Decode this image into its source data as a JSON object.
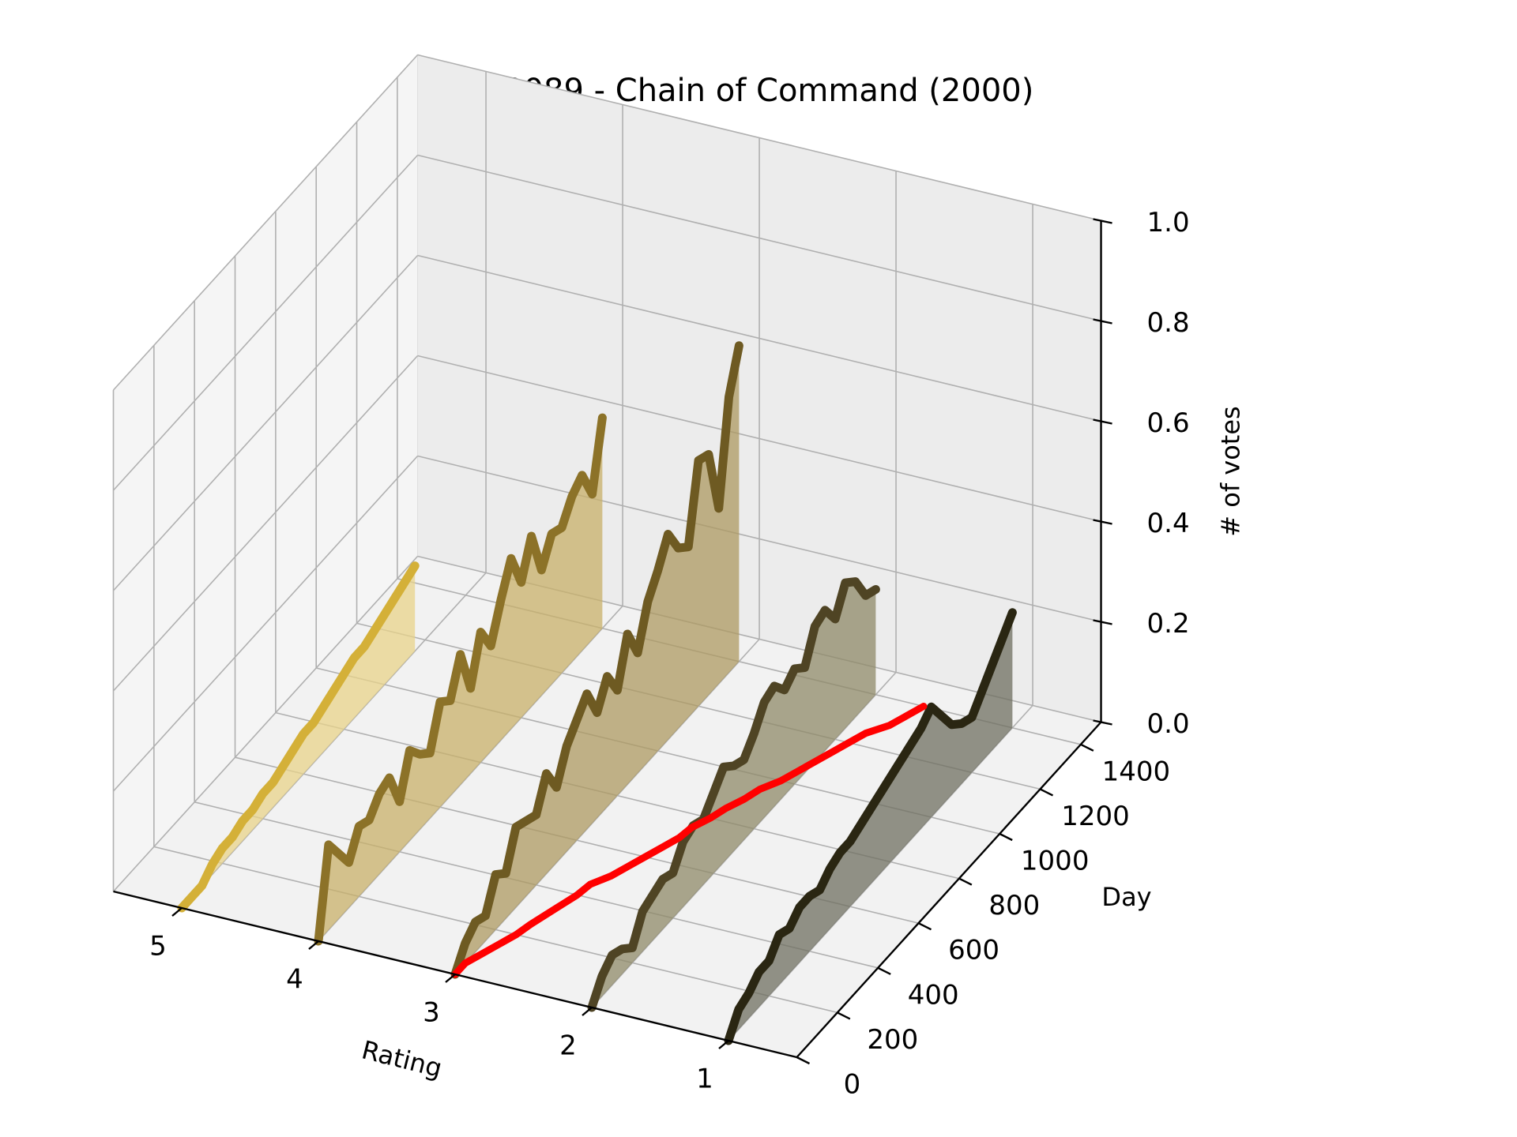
{
  "chart_data": {
    "type": "line",
    "projection": "3d",
    "title": "00089 - Chain of Command (2000)",
    "xlabel": "Rating",
    "ylabel": "Day",
    "zlabel": "# of votes",
    "xlim": [
      0.5,
      5.5
    ],
    "ylim": [
      0,
      1500
    ],
    "zlim": [
      0,
      1.0
    ],
    "x_ticks": [
      "1",
      "2",
      "3",
      "4",
      "5"
    ],
    "y_ticks": [
      "0",
      "200",
      "400",
      "600",
      "800",
      "1000",
      "1200",
      "1400"
    ],
    "z_ticks": [
      "0.0",
      "0.2",
      "0.4",
      "0.6",
      "0.8",
      "1.0"
    ],
    "grid": true,
    "pane_color": "#f2f2f2",
    "series": [
      {
        "rating": 5,
        "color": "#d4b038",
        "fill": "#e8d38a",
        "days": [
          0,
          50,
          100,
          150,
          200,
          250,
          300,
          350,
          400,
          450,
          500,
          550,
          600,
          650,
          700,
          750,
          800,
          850,
          900,
          950,
          1000,
          1050,
          1100,
          1150
        ],
        "values": [
          0.0,
          0.0,
          0.0,
          0.02,
          0.03,
          0.03,
          0.04,
          0.04,
          0.05,
          0.05,
          0.06,
          0.07,
          0.08,
          0.08,
          0.09,
          0.1,
          0.11,
          0.12,
          0.12,
          0.13,
          0.14,
          0.15,
          0.16,
          0.17
        ]
      },
      {
        "rating": 4,
        "color": "#8c7228",
        "fill": "#c8b06a",
        "days": [
          0,
          50,
          100,
          150,
          200,
          250,
          300,
          350,
          400,
          450,
          500,
          550,
          600,
          650,
          700,
          750,
          800,
          850,
          900,
          950,
          1000,
          1050,
          1100,
          1150,
          1200,
          1250,
          1300,
          1350,
          1400
        ],
        "values": [
          0.0,
          0.17,
          0.13,
          0.09,
          0.14,
          0.13,
          0.16,
          0.17,
          0.1,
          0.18,
          0.15,
          0.13,
          0.21,
          0.19,
          0.26,
          0.17,
          0.26,
          0.21,
          0.28,
          0.34,
          0.27,
          0.34,
          0.25,
          0.3,
          0.29,
          0.33,
          0.35,
          0.29,
          0.42
        ]
      },
      {
        "rating": 3,
        "color": "#6e5a22",
        "fill": "#ae9a62",
        "days": [
          0,
          50,
          100,
          150,
          200,
          250,
          300,
          350,
          400,
          450,
          500,
          550,
          600,
          650,
          700,
          750,
          800,
          850,
          900,
          950,
          1000,
          1050,
          1100,
          1150,
          1200,
          1250,
          1300,
          1350,
          1400
        ],
        "values": [
          0.0,
          0.04,
          0.06,
          0.05,
          0.11,
          0.09,
          0.16,
          0.15,
          0.14,
          0.2,
          0.15,
          0.21,
          0.24,
          0.27,
          0.21,
          0.26,
          0.21,
          0.3,
          0.24,
          0.32,
          0.36,
          0.41,
          0.36,
          0.34,
          0.49,
          0.48,
          0.35,
          0.55,
          0.63
        ]
      },
      {
        "rating": 2,
        "color": "#4f4424",
        "fill": "#8f8a68",
        "days": [
          0,
          50,
          100,
          150,
          200,
          250,
          300,
          350,
          400,
          450,
          500,
          550,
          600,
          650,
          700,
          750,
          800,
          850,
          900,
          950,
          1000,
          1050,
          1100,
          1150,
          1200,
          1250,
          1300,
          1350,
          1400
        ],
        "values": [
          0.0,
          0.04,
          0.06,
          0.05,
          0.03,
          0.08,
          0.09,
          0.1,
          0.09,
          0.13,
          0.14,
          0.13,
          0.16,
          0.19,
          0.17,
          0.16,
          0.19,
          0.23,
          0.24,
          0.21,
          0.23,
          0.21,
          0.27,
          0.28,
          0.24,
          0.29,
          0.27,
          0.22,
          0.21
        ]
      },
      {
        "rating": 1,
        "color": "#2a2612",
        "fill": "#6f6f60",
        "days": [
          0,
          50,
          100,
          150,
          200,
          250,
          300,
          350,
          400,
          450,
          500,
          550,
          600,
          650,
          700,
          750,
          800,
          850,
          900,
          950,
          1000,
          1050,
          1100,
          1150,
          1200,
          1250,
          1300,
          1350,
          1400
        ],
        "values": [
          0.0,
          0.04,
          0.05,
          0.07,
          0.07,
          0.1,
          0.09,
          0.11,
          0.11,
          0.1,
          0.12,
          0.13,
          0.13,
          0.14,
          0.15,
          0.16,
          0.17,
          0.18,
          0.19,
          0.2,
          0.22,
          0.18,
          0.14,
          0.12,
          0.11,
          0.14,
          0.17,
          0.2,
          0.23
        ]
      }
    ],
    "mean_rating": {
      "color": "#ff0000",
      "days": [
        0,
        50,
        100,
        150,
        200,
        250,
        300,
        350,
        400,
        450,
        500,
        550,
        600,
        650,
        700,
        750,
        800,
        850,
        900,
        950,
        1000,
        1050,
        1100,
        1150,
        1200,
        1250,
        1300,
        1350,
        1400
      ],
      "ratings": [
        3.0,
        3.0,
        2.95,
        2.9,
        2.85,
        2.82,
        2.78,
        2.74,
        2.7,
        2.68,
        2.6,
        2.55,
        2.5,
        2.45,
        2.4,
        2.38,
        2.32,
        2.28,
        2.22,
        2.18,
        2.1,
        2.05,
        2.0,
        1.95,
        1.9,
        1.85,
        1.75,
        1.7,
        1.65
      ]
    }
  }
}
